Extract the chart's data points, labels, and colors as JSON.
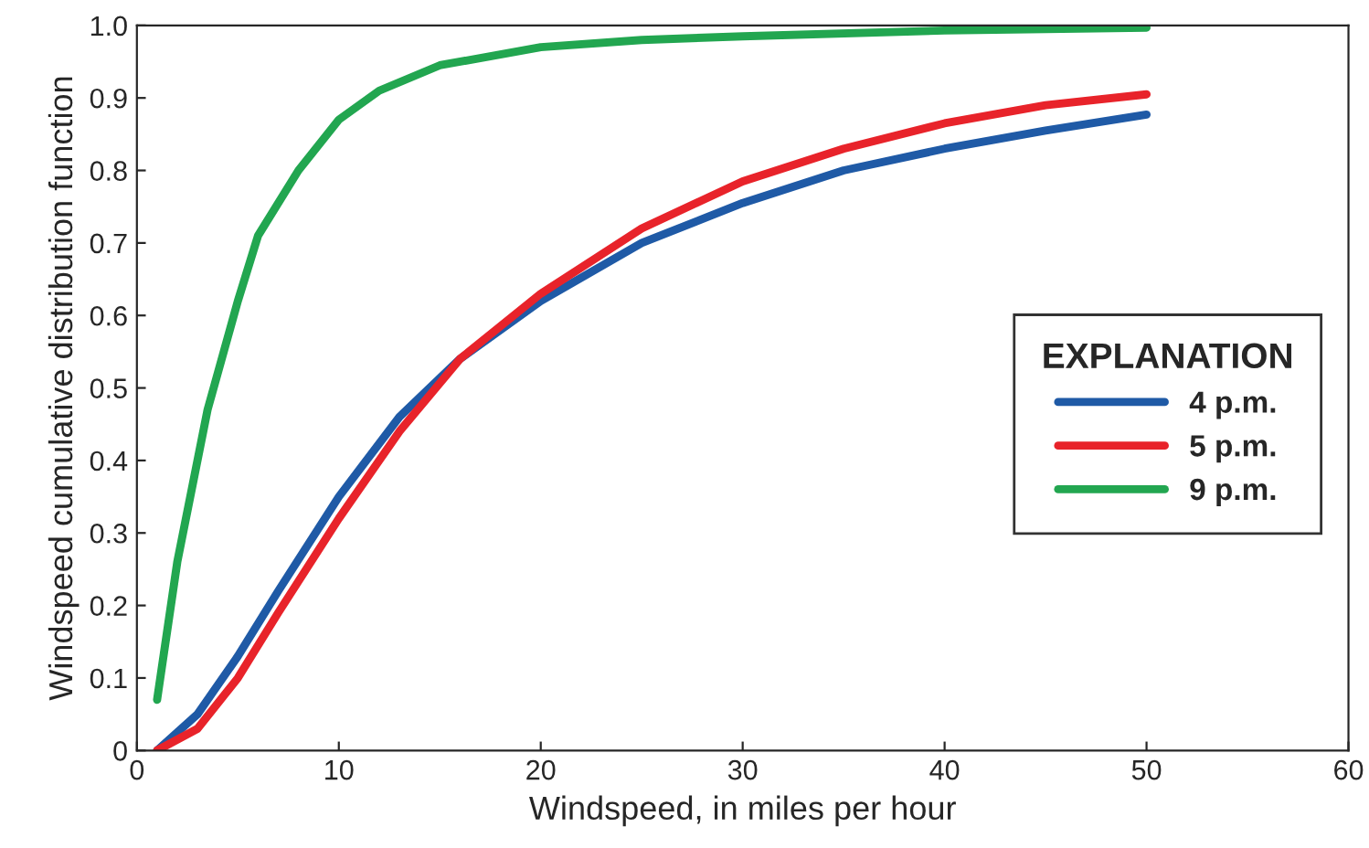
{
  "chart_data": {
    "type": "line",
    "xlabel": "Windspeed, in miles per hour",
    "ylabel": "Windspeed cumulative distribution function",
    "legend_title": "EXPLANATION",
    "legend": "right",
    "grid": false,
    "marker": "none",
    "line_style": "solid",
    "xlim": [
      0,
      60
    ],
    "xticks": [
      0,
      10,
      20,
      30,
      40,
      50,
      60
    ],
    "ylim": [
      0,
      1.0
    ],
    "yticks": [
      0,
      0.1,
      0.2,
      0.3,
      0.4,
      0.5,
      0.6,
      0.7,
      0.8,
      0.9,
      {
        "value": 1.0,
        "label": "1.0"
      }
    ],
    "series": [
      {
        "name": "4 p.m.",
        "color": "#1f5aa6",
        "x": [
          1,
          3,
          5,
          7,
          10,
          13,
          16,
          20,
          25,
          30,
          35,
          40,
          45,
          50
        ],
        "values": [
          0,
          0.05,
          0.13,
          0.22,
          0.35,
          0.46,
          0.54,
          0.62,
          0.7,
          0.755,
          0.8,
          0.83,
          0.855,
          0.877
        ]
      },
      {
        "name": "5 p.m.",
        "color": "#e8232a",
        "x": [
          1,
          3,
          5,
          7,
          10,
          13,
          16,
          20,
          25,
          30,
          35,
          40,
          45,
          50
        ],
        "values": [
          0,
          0.03,
          0.1,
          0.19,
          0.32,
          0.44,
          0.54,
          0.63,
          0.72,
          0.785,
          0.83,
          0.865,
          0.89,
          0.905
        ]
      },
      {
        "name": "9 p.m.",
        "color": "#22a650",
        "x": [
          1,
          2,
          3.5,
          5,
          6,
          8,
          10,
          12,
          15,
          20,
          25,
          30,
          40,
          50
        ],
        "values": [
          0.07,
          0.26,
          0.47,
          0.62,
          0.71,
          0.8,
          0.87,
          0.91,
          0.945,
          0.97,
          0.98,
          0.985,
          0.993,
          0.997
        ]
      }
    ]
  }
}
